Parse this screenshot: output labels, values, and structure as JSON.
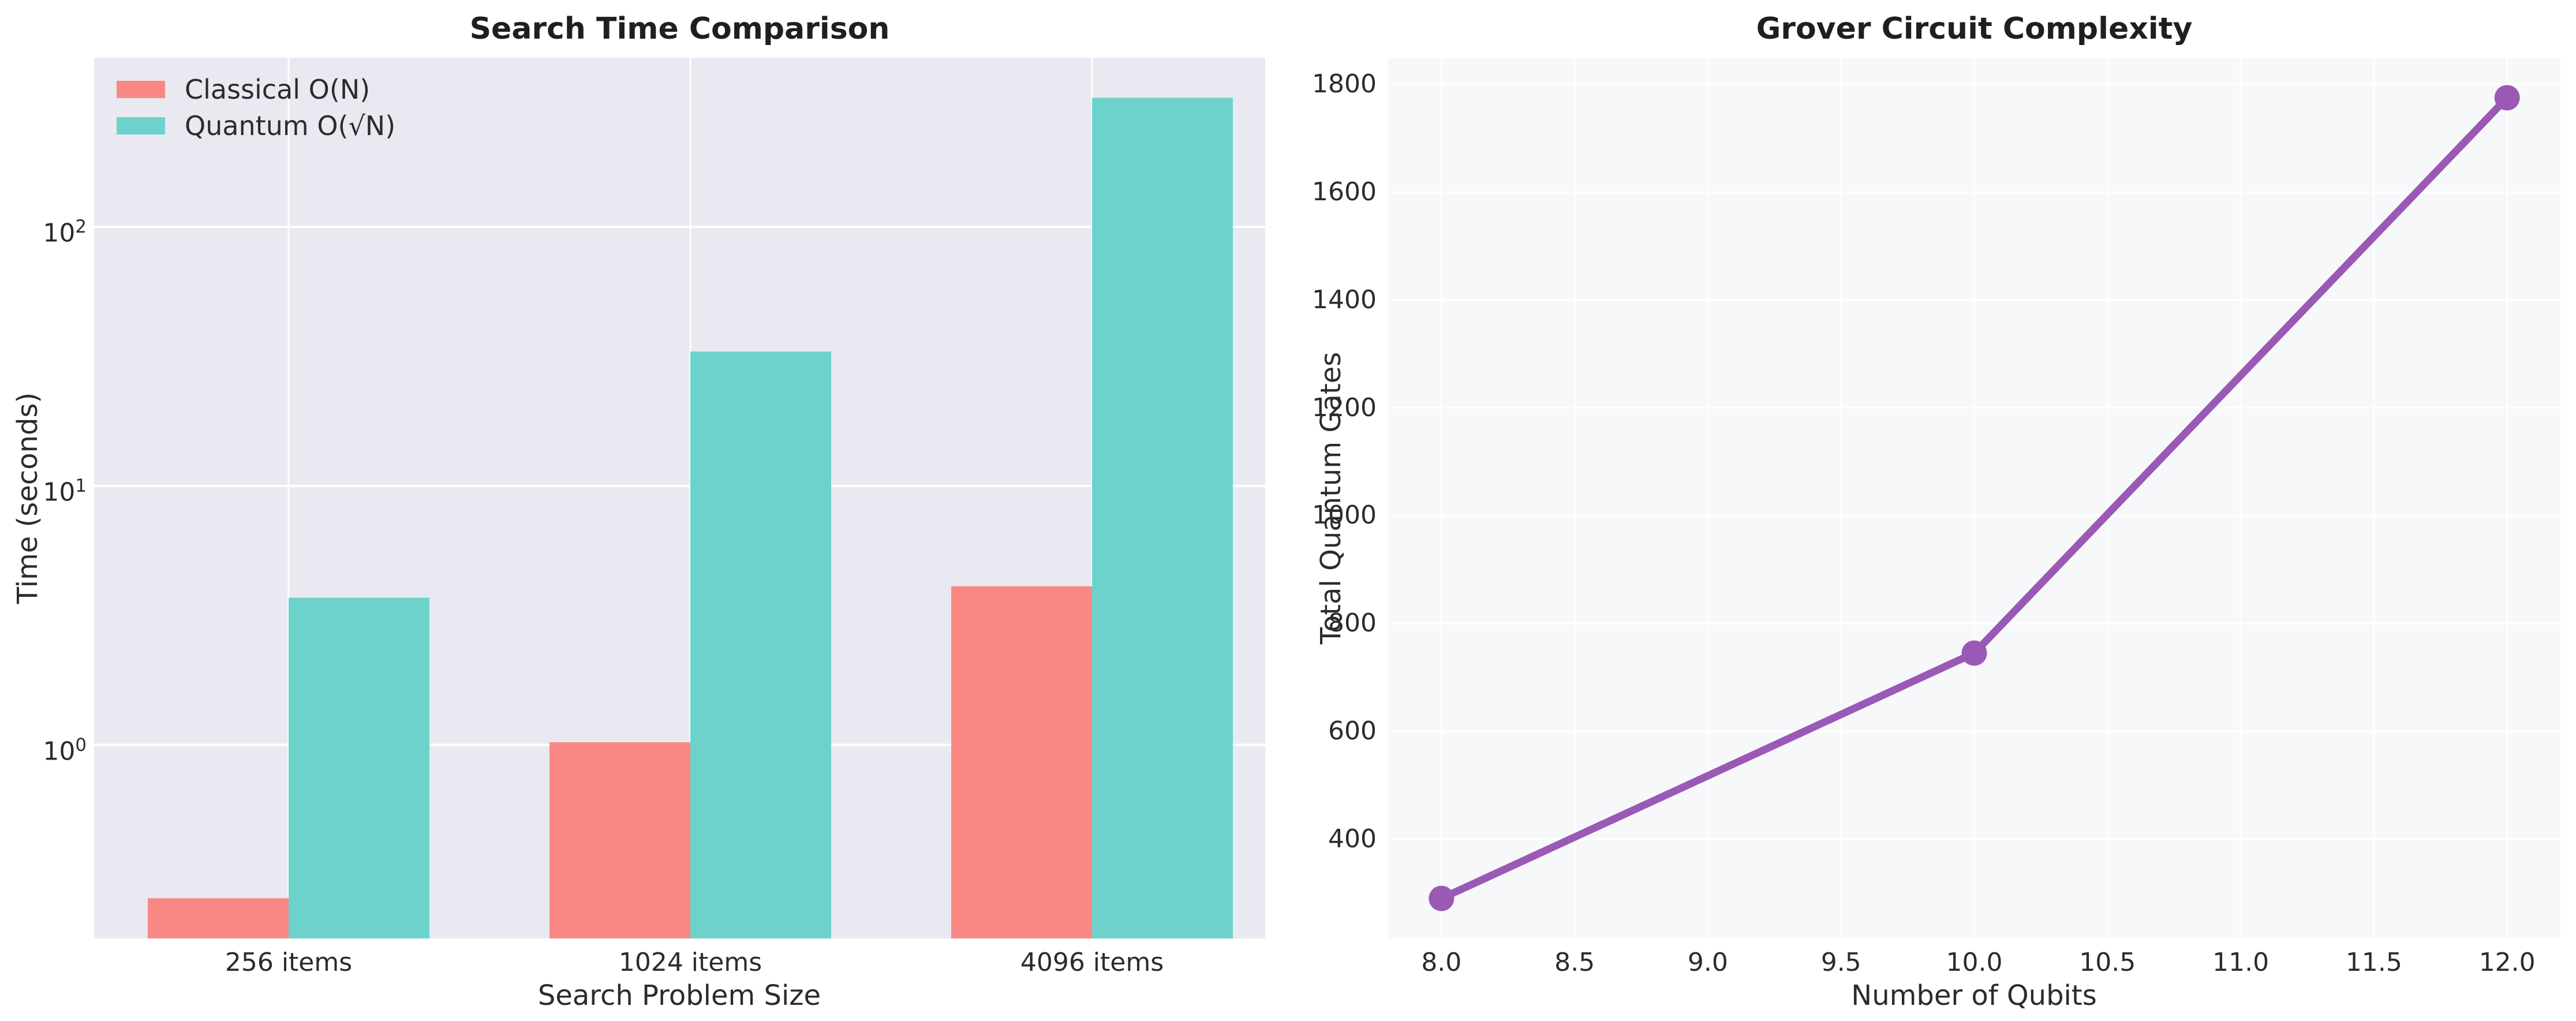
{
  "figure": {
    "background": "#ffffff"
  },
  "colors": {
    "classical_bar": "#F98884",
    "quantum_bar": "#6DD2CC",
    "grover_line": "#9B59B6",
    "left_plot_bg": "#E9E9F1",
    "right_plot_bg": "#F7F8FA",
    "gridline": "#FFFFFF",
    "tick_text": "#2B2B2B",
    "title_text": "#1F1F1F"
  },
  "chart_data": [
    {
      "type": "bar",
      "title": "Search Time Comparison",
      "xlabel": "Search Problem Size",
      "ylabel": "Time (seconds)",
      "yscale": "log",
      "ylim": [
        0.179,
        449.6
      ],
      "grid": true,
      "legend_position": "upper left",
      "categories": [
        "256 items",
        "1024 items",
        "4096 items"
      ],
      "yticks": [
        {
          "base": "10",
          "exp": "0",
          "value": 1
        },
        {
          "base": "10",
          "exp": "1",
          "value": 10
        },
        {
          "base": "10",
          "exp": "2",
          "value": 100
        }
      ],
      "series": [
        {
          "name": "Classical O(N)",
          "color_key": "classical_bar",
          "values": [
            0.256,
            1.024,
            4.096
          ]
        },
        {
          "name": "Quantum O(√N)",
          "color_key": "quantum_bar",
          "values": [
            3.7,
            33,
            315
          ]
        }
      ]
    },
    {
      "type": "line",
      "title": "Grover Circuit Complexity",
      "xlabel": "Number of Qubits",
      "ylabel": "Total Quantum Gates",
      "x": [
        8,
        10,
        12
      ],
      "y": [
        290,
        745,
        1775
      ],
      "xlim": [
        7.8,
        12.2
      ],
      "ylim": [
        215.75,
        1849.25
      ],
      "grid": true,
      "xticks": [
        8.0,
        8.5,
        9.0,
        9.5,
        10.0,
        10.5,
        11.0,
        11.5,
        12.0
      ],
      "xtick_labels": [
        "8.0",
        "8.5",
        "9.0",
        "9.5",
        "10.0",
        "10.5",
        "11.0",
        "11.5",
        "12.0"
      ],
      "yticks": [
        400,
        600,
        800,
        1000,
        1200,
        1400,
        1600,
        1800
      ]
    }
  ]
}
